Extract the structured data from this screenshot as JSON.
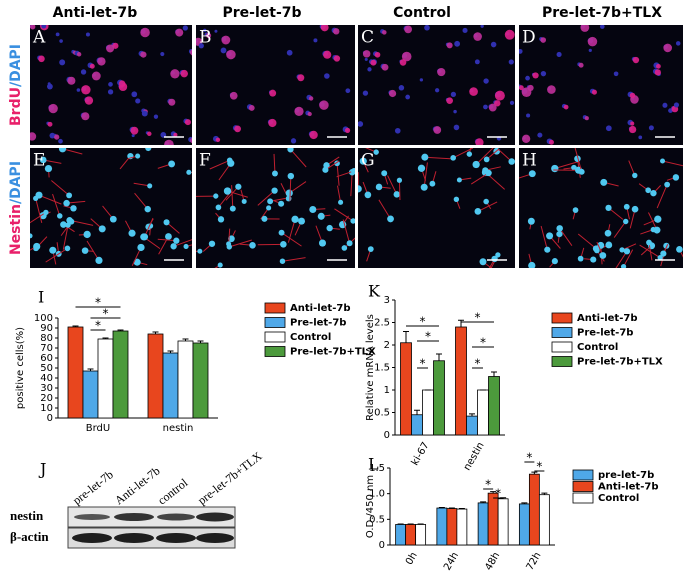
{
  "header": {
    "columns": [
      "Anti-let-7b",
      "Pre-let-7b",
      "Control",
      "Pre-let-7b+TLX"
    ]
  },
  "row_labels": [
    [
      "BrdU",
      "/DAPI"
    ],
    [
      "Nestin",
      "/DAPI"
    ]
  ],
  "panels": [
    "A",
    "B",
    "C",
    "D",
    "E",
    "F",
    "G",
    "H"
  ],
  "blot": {
    "label": "J",
    "lanes": [
      "pre-let-7b",
      "Anti-let-7b",
      "control",
      "pre-let-7b+TLX"
    ],
    "bands": [
      "nestin",
      "β-actin"
    ]
  },
  "chart_data": [
    {
      "type": "bar",
      "label": "I",
      "y_label": "positive cells(%)",
      "categories": [
        "BrdU",
        "nestin"
      ],
      "series": [
        {
          "name": "Anti-let-7b",
          "color": "#e8461e",
          "values": [
            91,
            84
          ],
          "errors": [
            1,
            2
          ]
        },
        {
          "name": "Pre-let-7b",
          "color": "#4fa8e8",
          "values": [
            47,
            65
          ],
          "errors": [
            2,
            2
          ]
        },
        {
          "name": "Control",
          "color": "#ffffff",
          "values": [
            79,
            77
          ],
          "errors": [
            1,
            2
          ]
        },
        {
          "name": "Pre-let-7b+TLX",
          "color": "#4c9a3c",
          "values": [
            87,
            75
          ],
          "errors": [
            1,
            2
          ]
        }
      ],
      "ylim": [
        0,
        100
      ],
      "yticks": [
        0,
        10,
        20,
        30,
        40,
        50,
        60,
        70,
        80,
        90,
        100
      ],
      "annotations": [
        "*",
        "*",
        "*"
      ]
    },
    {
      "type": "bar",
      "label": "K",
      "y_label": "Relative mRNA levels",
      "categories": [
        "ki-67",
        "nestin"
      ],
      "series": [
        {
          "name": "Anti-let-7b",
          "color": "#e8461e",
          "values": [
            2.05,
            2.4
          ],
          "errors": [
            0.25,
            0.15
          ]
        },
        {
          "name": "Pre-let-7b",
          "color": "#4fa8e8",
          "values": [
            0.45,
            0.42
          ],
          "errors": [
            0.1,
            0.05
          ]
        },
        {
          "name": "Control",
          "color": "#ffffff",
          "values": [
            1,
            1
          ],
          "errors": [
            0,
            0
          ]
        },
        {
          "name": "Pre-let-7b+TLX",
          "color": "#4c9a3c",
          "values": [
            1.65,
            1.3
          ],
          "errors": [
            0.15,
            0.1
          ]
        }
      ],
      "ylim": [
        0,
        3
      ],
      "yticks": [
        0,
        0.5,
        1,
        1.5,
        2,
        2.5,
        3
      ],
      "annotations": [
        "*",
        "*",
        "*",
        "*",
        "*",
        "*"
      ]
    },
    {
      "type": "bar",
      "label": "L",
      "y_label": "O.D./450 nm",
      "categories": [
        "0h",
        "24h",
        "48h",
        "72h"
      ],
      "series": [
        {
          "name": "pre-let-7b",
          "color": "#4fa8e8",
          "values": [
            0.4,
            0.72,
            0.82,
            0.8
          ],
          "errors": [
            0.01,
            0.01,
            0.02,
            0.02
          ]
        },
        {
          "name": "Anti-let-7b",
          "color": "#e8461e",
          "values": [
            0.4,
            0.71,
            1.01,
            1.38
          ],
          "errors": [
            0.01,
            0.01,
            0.03,
            0.04
          ]
        },
        {
          "name": "Control",
          "color": "#ffffff",
          "values": [
            0.4,
            0.7,
            0.9,
            0.98
          ],
          "errors": [
            0.01,
            0.01,
            0.02,
            0.03
          ]
        }
      ],
      "ylim": [
        0,
        1.5
      ],
      "yticks": [
        0,
        0.5,
        {
          "value": 1,
          "label": "1.0"
        },
        1.5
      ],
      "annotations": [
        "*",
        "*",
        "*",
        "*"
      ]
    }
  ]
}
